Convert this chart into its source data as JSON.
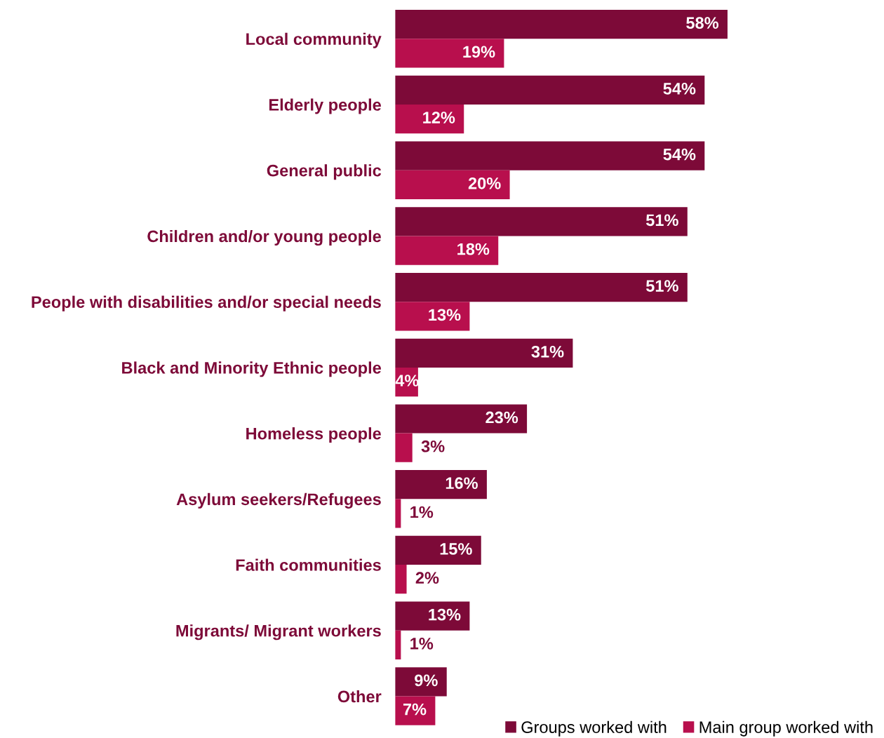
{
  "chart_data": {
    "type": "bar",
    "orientation": "horizontal",
    "categories": [
      "Local community",
      "Elderly people",
      "General public",
      "Children and/or young people",
      "People with disabilities and/or special needs",
      "Black and Minority Ethnic people",
      "Homeless people",
      "Asylum seekers/Refugees",
      "Faith communities",
      "Migrants/ Migrant workers",
      "Other"
    ],
    "series": [
      {
        "name": "Groups worked with",
        "color": "#7d0a38",
        "values": [
          58,
          54,
          54,
          51,
          51,
          31,
          23,
          16,
          15,
          13,
          9
        ],
        "value_labels": [
          "58%",
          "54%",
          "54%",
          "51%",
          "51%",
          "31%",
          "23%",
          "16%",
          "15%",
          "13%",
          "9%"
        ]
      },
      {
        "name": "Main group worked with",
        "color": "#b80f4d",
        "values": [
          19,
          12,
          20,
          18,
          13,
          4,
          3,
          1,
          2,
          1,
          7
        ],
        "value_labels": [
          "19%",
          "12%",
          "20%",
          "18%",
          "13%",
          "4%",
          "3%",
          "1%",
          "2%",
          "1%",
          "7%"
        ]
      }
    ],
    "legend": "bottom right",
    "grid": false
  }
}
